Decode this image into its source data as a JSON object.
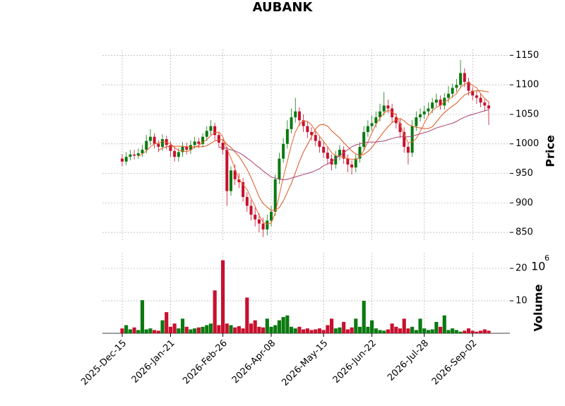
{
  "chart_data": {
    "type": "candlestick",
    "title": "AUBANK",
    "ylabel": "Price",
    "volume_label": "Volume",
    "volume_offset_base": "10",
    "volume_offset_exponent": "6",
    "grid": true,
    "up_color": "#0a7a10",
    "down_color": "#c8102e",
    "categories": [
      "2025-Dec-15",
      null,
      null,
      null,
      null,
      null,
      null,
      null,
      null,
      null,
      null,
      null,
      "2026-Jan-21",
      null,
      null,
      null,
      null,
      null,
      null,
      null,
      null,
      null,
      null,
      null,
      null,
      "2026-Feb-26",
      null,
      null,
      null,
      null,
      null,
      null,
      null,
      null,
      null,
      null,
      null,
      "2026-Apr-08",
      null,
      null,
      null,
      null,
      null,
      null,
      null,
      null,
      null,
      null,
      null,
      null,
      "2026-May-15",
      null,
      null,
      null,
      null,
      null,
      null,
      null,
      null,
      null,
      null,
      null,
      "2026-Jun-22",
      null,
      null,
      null,
      null,
      null,
      null,
      null,
      null,
      null,
      null,
      null,
      null,
      "2026-Jul-28",
      null,
      null,
      null,
      null,
      null,
      null,
      null,
      null,
      null,
      null,
      null,
      "2026-Sep-02",
      null,
      null,
      null,
      null
    ],
    "open": [
      975,
      970,
      978,
      982,
      980,
      984,
      990,
      1005,
      1012,
      1000,
      995,
      1008,
      998,
      988,
      978,
      986,
      995,
      990,
      998,
      1004,
      1000,
      1012,
      1022,
      1030,
      1015,
      1002,
      990,
      920,
      955,
      940,
      935,
      910,
      895,
      880,
      872,
      865,
      855,
      870,
      885,
      940,
      975,
      1000,
      1025,
      1045,
      1055,
      1040,
      1030,
      1020,
      1015,
      1005,
      995,
      985,
      975,
      965,
      980,
      990,
      975,
      965,
      960,
      975,
      995,
      1020,
      1030,
      1035,
      1045,
      1055,
      1065,
      1060,
      1045,
      1035,
      1020,
      995,
      985,
      1030,
      1045,
      1050,
      1055,
      1060,
      1070,
      1075,
      1065,
      1078,
      1085,
      1095,
      1100,
      1120,
      1105,
      1090,
      1082,
      1078,
      1070,
      1065
    ],
    "high": [
      983,
      986,
      990,
      990,
      992,
      998,
      1015,
      1025,
      1018,
      1006,
      1016,
      1014,
      1004,
      994,
      993,
      1003,
      1002,
      1006,
      1012,
      1010,
      1018,
      1030,
      1040,
      1036,
      1020,
      1008,
      995,
      962,
      965,
      950,
      942,
      918,
      905,
      892,
      882,
      875,
      880,
      895,
      948,
      985,
      1010,
      1040,
      1060,
      1078,
      1062,
      1050,
      1038,
      1028,
      1022,
      1012,
      1003,
      995,
      982,
      988,
      998,
      996,
      982,
      972,
      982,
      1003,
      1030,
      1040,
      1048,
      1055,
      1068,
      1088,
      1075,
      1068,
      1052,
      1042,
      1028,
      1002,
      1040,
      1055,
      1060,
      1065,
      1070,
      1078,
      1085,
      1082,
      1086,
      1098,
      1102,
      1110,
      1142,
      1128,
      1112,
      1096,
      1090,
      1086,
      1076,
      1072
    ],
    "low": [
      962,
      964,
      972,
      974,
      975,
      978,
      984,
      998,
      992,
      986,
      988,
      990,
      978,
      970,
      970,
      978,
      982,
      983,
      992,
      993,
      994,
      1005,
      1015,
      1006,
      994,
      982,
      895,
      912,
      930,
      925,
      902,
      885,
      870,
      860,
      850,
      842,
      845,
      860,
      878,
      932,
      968,
      992,
      1018,
      1036,
      1030,
      1020,
      1010,
      1006,
      996,
      985,
      976,
      965,
      955,
      958,
      972,
      966,
      952,
      948,
      952,
      968,
      988,
      1012,
      1022,
      1028,
      1038,
      1048,
      1052,
      1036,
      1026,
      1010,
      985,
      965,
      978,
      1022,
      1038,
      1042,
      1048,
      1052,
      1062,
      1058,
      1058,
      1070,
      1078,
      1088,
      1094,
      1096,
      1082,
      1074,
      1068,
      1062,
      1055,
      1032
    ],
    "close": [
      970,
      978,
      982,
      980,
      984,
      990,
      1005,
      1012,
      1000,
      995,
      1008,
      998,
      988,
      978,
      986,
      995,
      990,
      998,
      1004,
      1000,
      1012,
      1022,
      1030,
      1015,
      1002,
      990,
      920,
      955,
      940,
      935,
      910,
      895,
      880,
      872,
      865,
      855,
      870,
      885,
      940,
      975,
      1000,
      1025,
      1045,
      1055,
      1040,
      1030,
      1020,
      1015,
      1005,
      995,
      985,
      975,
      965,
      980,
      990,
      975,
      965,
      960,
      975,
      995,
      1020,
      1030,
      1035,
      1045,
      1055,
      1065,
      1060,
      1045,
      1035,
      1020,
      995,
      985,
      1030,
      1045,
      1050,
      1055,
      1060,
      1070,
      1075,
      1065,
      1078,
      1085,
      1095,
      1100,
      1120,
      1105,
      1090,
      1082,
      1078,
      1070,
      1065,
      1060
    ],
    "volume": [
      1.5,
      2.5,
      1.2,
      1.8,
      1.0,
      10.2,
      1.2,
      1.5,
      1.0,
      0.8,
      4.0,
      6.5,
      2.0,
      3.0,
      1.5,
      4.5,
      2.0,
      1.2,
      1.5,
      1.8,
      2.0,
      2.5,
      3.0,
      13.2,
      2.5,
      22.5,
      3.0,
      2.5,
      1.8,
      2.2,
      1.5,
      11.0,
      3.0,
      4.0,
      2.0,
      1.8,
      4.5,
      2.0,
      2.5,
      4.0,
      5.0,
      5.5,
      2.0,
      1.5,
      2.0,
      1.2,
      1.5,
      1.0,
      1.2,
      1.5,
      1.0,
      2.5,
      4.5,
      1.5,
      1.8,
      3.5,
      1.2,
      1.8,
      4.5,
      2.0,
      10.0,
      2.0,
      4.0,
      1.5,
      1.0,
      0.8,
      1.2,
      3.0,
      2.0,
      1.5,
      4.5,
      1.5,
      2.0,
      1.0,
      4.5,
      1.5,
      1.0,
      1.2,
      3.5,
      2.0,
      5.5,
      1.0,
      1.5,
      1.0,
      0.5,
      0.8,
      1.5,
      0.8,
      0.5,
      0.8,
      1.2,
      0.8
    ],
    "moving_averages": [
      {
        "color": "#e8622a",
        "values": [
          null,
          null,
          null,
          null,
          979,
          983,
          988,
          995,
          1000,
          1001,
          1004,
          1003,
          1000,
          994,
          989,
          988,
          987,
          989,
          995,
          997,
          1003,
          1007,
          1014,
          1019,
          1020,
          1012,
          991,
          976,
          958,
          940,
          931,
          923,
          908,
          894,
          879,
          867,
          864,
          866,
          883,
          913,
          943,
          970,
          998,
          1020,
          1033,
          1039,
          1038,
          1032,
          1022,
          1013,
          1004,
          995,
          985,
          980,
          979,
          977,
          975,
          974,
          973,
          978,
          989,
          1003,
          1019,
          1033,
          1044,
          1052,
          1057,
          1054,
          1049,
          1033,
          1016,
          1002,
          1003,
          1009,
          1021,
          1035,
          1048,
          1056,
          1062,
          1065,
          1071,
          1075,
          1080,
          1085,
          1096,
          1101,
          1104,
          1099,
          1095,
          1085,
          1077,
          1071
        ]
      },
      {
        "color": "#d9541e",
        "values": [
          null,
          null,
          null,
          null,
          null,
          null,
          null,
          null,
          null,
          989,
          993,
          995,
          996,
          996,
          996,
          996,
          995,
          995,
          995,
          995,
          995,
          997,
          1001,
          1005,
          1007,
          1007,
          999,
          994,
          986,
          979,
          968,
          957,
          943,
          927,
          910,
          899,
          893,
          887,
          888,
          892,
          903,
          918,
          933,
          951,
          970,
          986,
          999,
          1012,
          1025,
          1032,
          1033,
          1030,
          1022,
          1016,
          1010,
          1002,
          995,
          988,
          983,
          981,
          982,
          987,
          994,
          1003,
          1012,
          1021,
          1029,
          1036,
          1041,
          1043,
          1039,
          1033,
          1030,
          1028,
          1027,
          1026,
          1026,
          1029,
          1037,
          1046,
          1053,
          1059,
          1064,
          1069,
          1076,
          1083,
          1086,
          1089,
          1090,
          1090,
          1089,
          1088
        ]
      },
      {
        "color": "#a8406e",
        "values": [
          null,
          null,
          null,
          null,
          null,
          null,
          null,
          null,
          null,
          null,
          null,
          null,
          null,
          null,
          null,
          null,
          null,
          null,
          null,
          null,
          null,
          null,
          null,
          null,
          994,
          994,
          992,
          990,
          988,
          985,
          981,
          976,
          971,
          965,
          960,
          954,
          949,
          944,
          942,
          940,
          939,
          940,
          942,
          944,
          946,
          948,
          950,
          952,
          955,
          958,
          963,
          966,
          970,
          975,
          980,
          985,
          990,
          995,
          998,
          1000,
          1002,
          1003,
          1003,
          1003,
          1004,
          1005,
          1007,
          1009,
          1011,
          1012,
          1012,
          1012,
          1013,
          1015,
          1017,
          1019,
          1021,
          1024,
          1027,
          1029,
          1031,
          1033,
          1035,
          1038,
          1042,
          1045,
          1048,
          1050,
          1052,
          1054,
          1056,
          1058
        ]
      }
    ],
    "ylim": [
      837,
      1160
    ],
    "yticks": [
      850,
      900,
      950,
      1000,
      1050,
      1100,
      1150
    ],
    "volume_ylim": [
      0,
      24.8
    ],
    "volume_yticks": [
      10,
      20
    ]
  }
}
